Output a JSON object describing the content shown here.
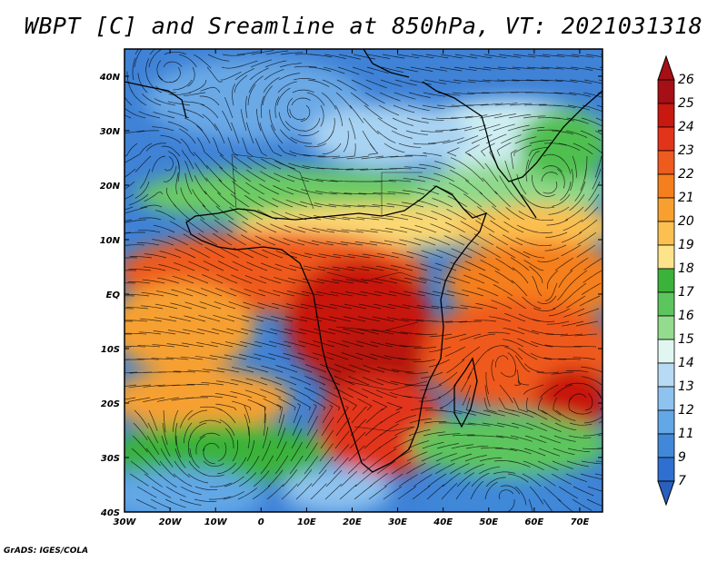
{
  "title": "WBPT [C] and Sreamline at 850hPa, VT: 2021031318",
  "footer": "GrADS: IGES/COLA",
  "map": {
    "lon_range": [
      -30,
      75
    ],
    "lat_range": [
      -40,
      45
    ],
    "lat_ticks": [
      {
        "value": 40,
        "label": "40N"
      },
      {
        "value": 30,
        "label": "30N"
      },
      {
        "value": 20,
        "label": "20N"
      },
      {
        "value": 10,
        "label": "10N"
      },
      {
        "value": 0,
        "label": "EQ"
      },
      {
        "value": -10,
        "label": "10S"
      },
      {
        "value": -20,
        "label": "20S"
      },
      {
        "value": -30,
        "label": "30S"
      },
      {
        "value": -40,
        "label": "40S"
      }
    ],
    "lon_ticks": [
      {
        "value": -30,
        "label": "30W"
      },
      {
        "value": -20,
        "label": "20W"
      },
      {
        "value": -10,
        "label": "10W"
      },
      {
        "value": 0,
        "label": "0"
      },
      {
        "value": 10,
        "label": "10E"
      },
      {
        "value": 20,
        "label": "20E"
      },
      {
        "value": 30,
        "label": "30E"
      },
      {
        "value": 40,
        "label": "40E"
      },
      {
        "value": 50,
        "label": "50E"
      },
      {
        "value": 60,
        "label": "60E"
      },
      {
        "value": 70,
        "label": "70E"
      }
    ]
  },
  "colorbar": {
    "levels": [
      "26",
      "25",
      "24",
      "23",
      "22",
      "21",
      "20",
      "19",
      "18",
      "17",
      "16",
      "15",
      "14",
      "13",
      "12",
      "11",
      "9",
      "7"
    ],
    "colors": [
      "#a50f15",
      "#c8180f",
      "#e2341b",
      "#ef5a1e",
      "#f57f1e",
      "#f7a030",
      "#fbc050",
      "#fde48a",
      "#3bb33b",
      "#5dc55d",
      "#93dc8e",
      "#dff7f0",
      "#b7daf5",
      "#8ec3ef",
      "#62a7e6",
      "#4188d8",
      "#2f6fcf",
      "#2a5fbf"
    ]
  }
}
